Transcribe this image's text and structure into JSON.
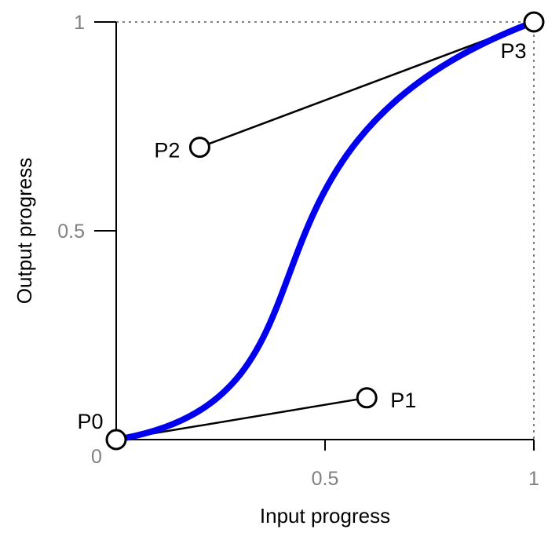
{
  "chart_data": {
    "type": "line",
    "title": "",
    "xlabel": "Input progress",
    "ylabel": "Output progress",
    "xlim": [
      0,
      1
    ],
    "ylim": [
      0,
      1
    ],
    "x_ticks": [
      {
        "value": 0.5,
        "label": "0.5"
      },
      {
        "value": 1,
        "label": "1"
      }
    ],
    "y_ticks": [
      {
        "value": 0.5,
        "label": "0.5"
      },
      {
        "value": 1,
        "label": "1"
      }
    ],
    "origin_label": "0",
    "grid": false,
    "reference_lines": "dotted at x=1 and y=1",
    "curve": {
      "kind": "cubic-bezier",
      "color": "#0000ee"
    },
    "control_points": [
      {
        "name": "P0",
        "x": 0,
        "y": 0
      },
      {
        "name": "P1",
        "x": 0.6,
        "y": 0.1
      },
      {
        "name": "P2",
        "x": 0.2,
        "y": 0.7
      },
      {
        "name": "P3",
        "x": 1,
        "y": 1
      }
    ],
    "handles": [
      {
        "from": "P0",
        "to": "P1"
      },
      {
        "from": "P3",
        "to": "P2"
      }
    ]
  },
  "colors": {
    "curve": "#0000ee",
    "axis": "#000000",
    "tick_label": "#808080",
    "reference": "#808080"
  }
}
